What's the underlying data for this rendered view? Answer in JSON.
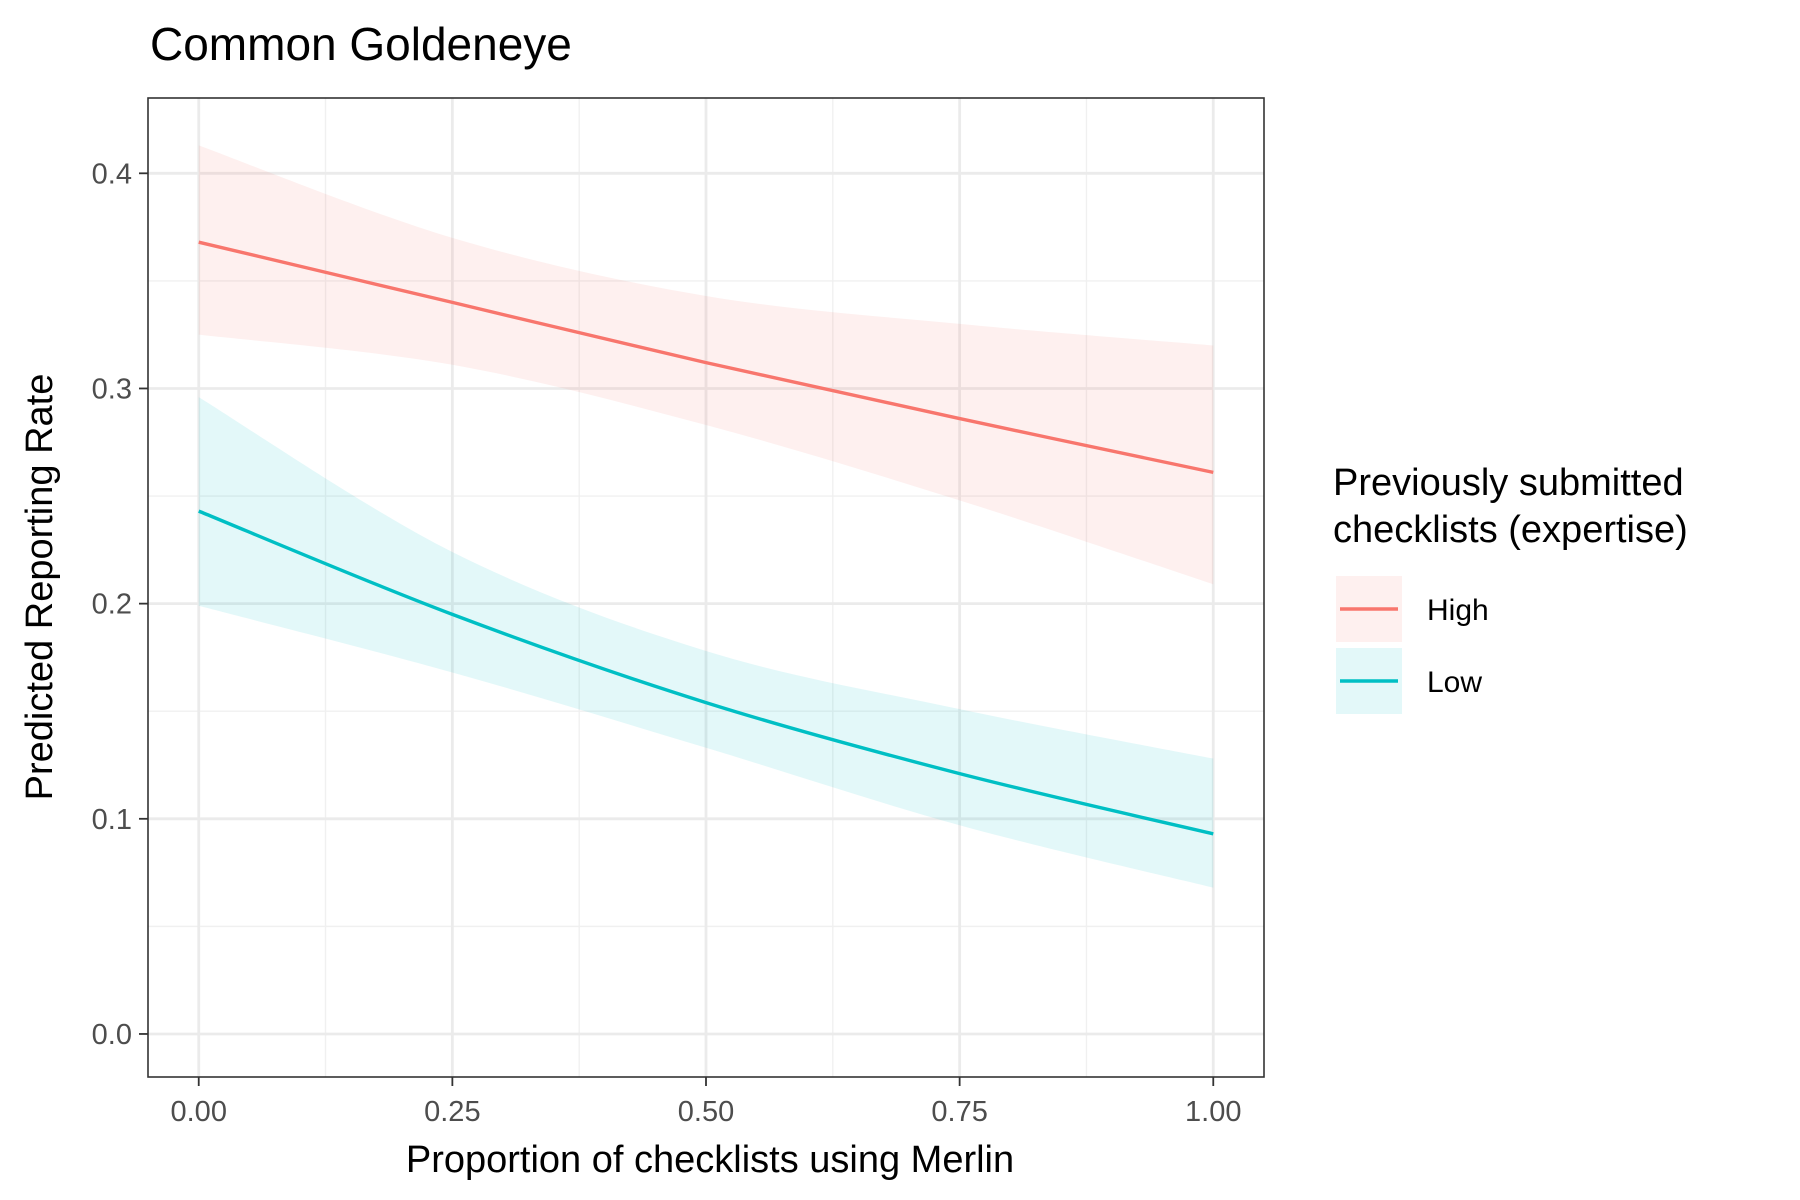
{
  "chart_data": {
    "type": "line",
    "title": "Common Goldeneye",
    "xlabel": "Proportion of checklists using Merlin",
    "ylabel": "Predicted Reporting Rate",
    "xlim": [
      -0.05,
      1.05
    ],
    "ylim": [
      -0.02,
      0.435
    ],
    "x_ticks": [
      0,
      0.25,
      0.5,
      0.75,
      1
    ],
    "x_tick_labels": [
      "0.00",
      "0.25",
      "0.50",
      "0.75",
      "1.00"
    ],
    "y_ticks": [
      0,
      0.1,
      0.2,
      0.3,
      0.4
    ],
    "y_tick_labels": [
      "0.0",
      "0.1",
      "0.2",
      "0.3",
      "0.4"
    ],
    "grid": true,
    "legend": {
      "title_lines": [
        "Previously submitted",
        "checklists (expertise)"
      ],
      "placement": "right"
    },
    "series": [
      {
        "name": "High",
        "color": "#F8766D",
        "x": [
          0,
          0.25,
          0.5,
          0.75,
          1
        ],
        "y": [
          0.368,
          0.34,
          0.312,
          0.286,
          0.261
        ],
        "lower": [
          0.325,
          0.311,
          0.283,
          0.248,
          0.209
        ],
        "upper": [
          0.413,
          0.37,
          0.343,
          0.33,
          0.32
        ]
      },
      {
        "name": "Low",
        "color": "#00BFC4",
        "x": [
          0,
          0.25,
          0.5,
          0.75,
          1
        ],
        "y": [
          0.243,
          0.195,
          0.154,
          0.121,
          0.093
        ],
        "lower": [
          0.199,
          0.168,
          0.133,
          0.097,
          0.068
        ],
        "upper": [
          0.296,
          0.224,
          0.178,
          0.151,
          0.128
        ]
      }
    ]
  }
}
